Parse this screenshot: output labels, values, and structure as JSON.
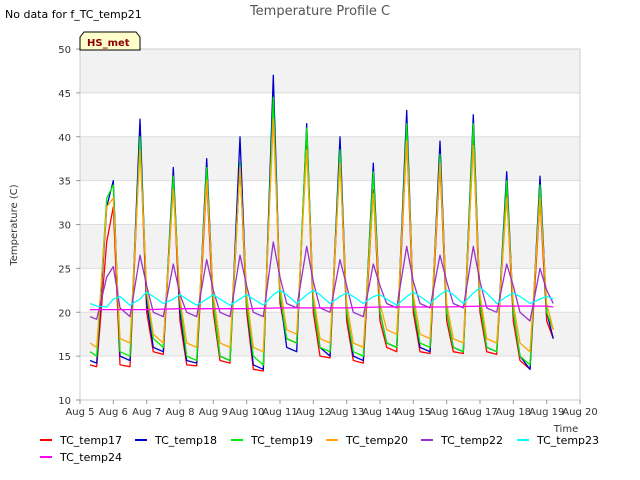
{
  "chart_data": {
    "type": "line",
    "title": "Temperature Profile C",
    "note": "No data for f_TC_temp21",
    "badge": "HS_met",
    "xlabel": "Time",
    "ylabel": "Temperature (C)",
    "ylim": [
      10,
      50
    ],
    "xlim": [
      5,
      20
    ],
    "y_ticks": [
      10,
      15,
      20,
      25,
      30,
      35,
      40,
      45,
      50
    ],
    "x_ticks": [
      5,
      6,
      7,
      8,
      9,
      10,
      11,
      12,
      13,
      14,
      15,
      16,
      17,
      18,
      19,
      20
    ],
    "x_tick_labels": [
      "Aug 5",
      "Aug 6",
      "Aug 7",
      "Aug 8",
      "Aug 9",
      "Aug 10",
      "Aug 11",
      "Aug 12",
      "Aug 13",
      "Aug 14",
      "Aug 15",
      "Aug 16",
      "Aug 17",
      "Aug 18",
      "Aug 19",
      "Aug 20"
    ],
    "grid": true,
    "legend": "bottom",
    "series_style": [
      {
        "name": "TC_temp17",
        "color": "#ff0000"
      },
      {
        "name": "TC_temp18",
        "color": "#0000cc"
      },
      {
        "name": "TC_temp19",
        "color": "#00ee00"
      },
      {
        "name": "TC_temp20",
        "color": "#ffa500"
      },
      {
        "name": "TC_temp22",
        "color": "#9932cc"
      },
      {
        "name": "TC_temp23",
        "color": "#00ffff"
      },
      {
        "name": "TC_temp24",
        "color": "#ff00ff"
      }
    ],
    "series": [
      {
        "name": "TC_temp17",
        "x": [
          5.3,
          5.5,
          5.8,
          6.0,
          6.2,
          6.5,
          6.8,
          7.0,
          7.2,
          7.5,
          7.8,
          8.0,
          8.2,
          8.5,
          8.8,
          9.0,
          9.2,
          9.5,
          9.8,
          10.0,
          10.2,
          10.5,
          10.8,
          11.0,
          11.2,
          11.5,
          11.8,
          12.0,
          12.2,
          12.5,
          12.8,
          13.0,
          13.2,
          13.5,
          13.8,
          14.0,
          14.2,
          14.5,
          14.8,
          15.0,
          15.2,
          15.5,
          15.8,
          16.0,
          16.2,
          16.5,
          16.8,
          17.0,
          17.2,
          17.5,
          17.8,
          18.0,
          18.2,
          18.5,
          18.8,
          19.0,
          19.2
        ],
        "y": [
          14.0,
          13.8,
          28.0,
          32.0,
          14.0,
          13.8,
          40.0,
          20.0,
          15.5,
          15.2,
          35.0,
          19.0,
          14.0,
          13.9,
          35.0,
          20.0,
          14.5,
          14.2,
          37.0,
          20.0,
          13.5,
          13.3,
          45.0,
          21.0,
          17.0,
          16.5,
          40.0,
          20.0,
          15.0,
          14.8,
          38.0,
          19.0,
          14.5,
          14.2,
          34.0,
          19.0,
          16.0,
          15.5,
          40.0,
          20.0,
          15.5,
          15.3,
          37.0,
          19.0,
          15.5,
          15.3,
          40.0,
          20.0,
          15.5,
          15.2,
          34.0,
          19.0,
          14.5,
          13.5,
          33.0,
          19.0,
          17.0
        ]
      },
      {
        "name": "TC_temp18",
        "x": [
          5.3,
          5.5,
          5.8,
          6.0,
          6.2,
          6.5,
          6.8,
          7.0,
          7.2,
          7.5,
          7.8,
          8.0,
          8.2,
          8.5,
          8.8,
          9.0,
          9.2,
          9.5,
          9.8,
          10.0,
          10.2,
          10.5,
          10.8,
          11.0,
          11.2,
          11.5,
          11.8,
          12.0,
          12.2,
          12.5,
          12.8,
          13.0,
          13.2,
          13.5,
          13.8,
          14.0,
          14.2,
          14.5,
          14.8,
          15.0,
          15.2,
          15.5,
          15.8,
          16.0,
          16.2,
          16.5,
          16.8,
          17.0,
          17.2,
          17.5,
          17.8,
          18.0,
          18.2,
          18.5,
          18.8,
          19.0,
          19.2
        ],
        "y": [
          14.5,
          14.2,
          32.0,
          35.0,
          15.0,
          14.5,
          42.0,
          21.0,
          16.0,
          15.5,
          36.5,
          20.0,
          14.5,
          14.2,
          37.5,
          21.0,
          15.0,
          14.5,
          40.0,
          21.0,
          14.0,
          13.5,
          47.0,
          22.0,
          16.0,
          15.5,
          41.5,
          21.0,
          16.0,
          15.0,
          40.0,
          20.0,
          15.0,
          14.5,
          37.0,
          20.0,
          16.5,
          16.0,
          43.0,
          21.0,
          16.0,
          15.5,
          39.5,
          20.0,
          16.0,
          15.5,
          42.5,
          21.0,
          16.0,
          15.5,
          36.0,
          20.0,
          15.0,
          13.5,
          35.5,
          20.0,
          17.0
        ]
      },
      {
        "name": "TC_temp19",
        "x": [
          5.3,
          5.5,
          5.8,
          6.0,
          6.2,
          6.5,
          6.8,
          7.0,
          7.2,
          7.5,
          7.8,
          8.0,
          8.2,
          8.5,
          8.8,
          9.0,
          9.2,
          9.5,
          9.8,
          10.0,
          10.2,
          10.5,
          10.8,
          11.0,
          11.2,
          11.5,
          11.8,
          12.0,
          12.2,
          12.5,
          12.8,
          13.0,
          13.2,
          13.5,
          13.8,
          14.0,
          14.2,
          14.5,
          14.8,
          15.0,
          15.2,
          15.5,
          15.8,
          16.0,
          16.2,
          16.5,
          16.8,
          17.0,
          17.2,
          17.5,
          17.8,
          18.0,
          18.2,
          18.5,
          18.8,
          19.0,
          19.2
        ],
        "y": [
          15.5,
          15.0,
          33.0,
          34.5,
          15.5,
          15.0,
          40.0,
          22.0,
          17.0,
          16.0,
          35.5,
          21.0,
          15.0,
          14.5,
          36.5,
          21.0,
          15.0,
          14.5,
          37.0,
          21.0,
          15.0,
          14.0,
          44.5,
          22.0,
          17.0,
          16.5,
          41.0,
          21.0,
          16.0,
          15.5,
          38.5,
          20.0,
          15.5,
          15.0,
          36.0,
          20.0,
          16.5,
          16.0,
          41.5,
          21.0,
          16.5,
          16.0,
          38.0,
          20.0,
          16.0,
          15.5,
          41.5,
          21.0,
          16.0,
          15.5,
          35.0,
          20.0,
          15.0,
          14.0,
          34.5,
          20.0,
          18.0
        ]
      },
      {
        "name": "TC_temp20",
        "x": [
          5.3,
          5.5,
          5.8,
          6.0,
          6.2,
          6.5,
          6.8,
          7.0,
          7.2,
          7.5,
          7.8,
          8.0,
          8.2,
          8.5,
          8.8,
          9.0,
          9.2,
          9.5,
          9.8,
          10.0,
          10.2,
          10.5,
          10.8,
          11.0,
          11.2,
          11.5,
          11.8,
          12.0,
          12.2,
          12.5,
          12.8,
          13.0,
          13.2,
          13.5,
          13.8,
          14.0,
          14.2,
          14.5,
          14.8,
          15.0,
          15.2,
          15.5,
          15.8,
          16.0,
          16.2,
          16.5,
          16.8,
          17.0,
          17.2,
          17.5,
          17.8,
          18.0,
          18.2,
          18.5,
          18.8,
          19.0,
          19.2
        ],
        "y": [
          16.5,
          16.0,
          32.0,
          33.0,
          17.0,
          16.5,
          38.5,
          22.5,
          17.5,
          16.5,
          34.0,
          21.5,
          16.5,
          16.0,
          35.0,
          22.0,
          16.5,
          16.0,
          36.5,
          22.0,
          16.0,
          15.5,
          42.0,
          23.0,
          18.0,
          17.5,
          38.5,
          22.0,
          17.0,
          16.5,
          37.0,
          21.0,
          16.5,
          16.0,
          33.5,
          21.0,
          18.0,
          17.5,
          39.5,
          22.0,
          17.5,
          17.0,
          37.0,
          21.0,
          17.0,
          16.5,
          39.0,
          22.0,
          17.0,
          16.5,
          33.0,
          21.0,
          16.5,
          15.5,
          33.0,
          21.0,
          18.0
        ]
      },
      {
        "name": "TC_temp22",
        "x": [
          5.3,
          5.5,
          5.8,
          6.0,
          6.2,
          6.5,
          6.8,
          7.0,
          7.2,
          7.5,
          7.8,
          8.0,
          8.2,
          8.5,
          8.8,
          9.0,
          9.2,
          9.5,
          9.8,
          10.0,
          10.2,
          10.5,
          10.8,
          11.0,
          11.2,
          11.5,
          11.8,
          12.0,
          12.2,
          12.5,
          12.8,
          13.0,
          13.2,
          13.5,
          13.8,
          14.0,
          14.2,
          14.5,
          14.8,
          15.0,
          15.2,
          15.5,
          15.8,
          16.0,
          16.2,
          16.5,
          16.8,
          17.0,
          17.2,
          17.5,
          17.8,
          18.0,
          18.2,
          18.5,
          18.8,
          19.0,
          19.2
        ],
        "y": [
          19.5,
          19.2,
          24.0,
          25.2,
          20.5,
          19.5,
          26.5,
          23.0,
          20.0,
          19.5,
          25.5,
          22.0,
          20.0,
          19.5,
          26.0,
          22.5,
          20.0,
          19.5,
          26.5,
          23.0,
          20.0,
          19.5,
          28.0,
          24.0,
          21.0,
          20.5,
          27.5,
          23.5,
          20.5,
          20.0,
          26.0,
          23.0,
          20.0,
          19.5,
          25.5,
          23.0,
          21.0,
          20.5,
          27.5,
          23.5,
          21.0,
          20.5,
          26.5,
          23.5,
          21.0,
          20.5,
          27.5,
          23.5,
          20.5,
          20.0,
          25.5,
          23.0,
          20.0,
          19.0,
          25.0,
          22.5,
          21.0
        ]
      },
      {
        "name": "TC_temp23",
        "x": [
          5.3,
          5.5,
          5.8,
          6.0,
          6.2,
          6.5,
          6.8,
          7.0,
          7.2,
          7.5,
          7.8,
          8.0,
          8.2,
          8.5,
          8.8,
          9.0,
          9.2,
          9.5,
          9.8,
          10.0,
          10.2,
          10.5,
          10.8,
          11.0,
          11.2,
          11.5,
          11.8,
          12.0,
          12.2,
          12.5,
          12.8,
          13.0,
          13.2,
          13.5,
          13.8,
          14.0,
          14.2,
          14.5,
          14.8,
          15.0,
          15.2,
          15.5,
          15.8,
          16.0,
          16.2,
          16.5,
          16.8,
          17.0,
          17.2,
          17.5,
          17.8,
          18.0,
          18.2,
          18.5,
          18.8,
          19.0,
          19.2
        ],
        "y": [
          21.0,
          20.7,
          20.6,
          21.5,
          21.8,
          20.8,
          21.5,
          22.3,
          21.8,
          21.0,
          21.5,
          22.0,
          21.5,
          20.8,
          21.5,
          22.0,
          21.5,
          20.8,
          21.5,
          22.0,
          21.5,
          20.8,
          22.0,
          22.5,
          22.0,
          21.0,
          22.0,
          22.5,
          22.0,
          21.0,
          21.8,
          22.2,
          21.8,
          21.0,
          21.8,
          22.0,
          21.5,
          20.8,
          21.8,
          22.3,
          21.8,
          21.0,
          22.0,
          22.5,
          22.0,
          21.0,
          22.2,
          22.8,
          22.2,
          21.0,
          21.8,
          22.2,
          21.8,
          21.0,
          21.5,
          21.8,
          21.5
        ]
      },
      {
        "name": "TC_temp24",
        "x": [
          5.3,
          6.0,
          7.0,
          8.0,
          9.0,
          10.0,
          11.0,
          12.0,
          13.0,
          14.0,
          15.0,
          16.0,
          17.0,
          18.0,
          19.0,
          19.2
        ],
        "y": [
          20.3,
          20.3,
          20.3,
          20.4,
          20.4,
          20.4,
          20.5,
          20.5,
          20.5,
          20.6,
          20.6,
          20.6,
          20.7,
          20.7,
          20.7,
          20.6
        ]
      }
    ]
  }
}
